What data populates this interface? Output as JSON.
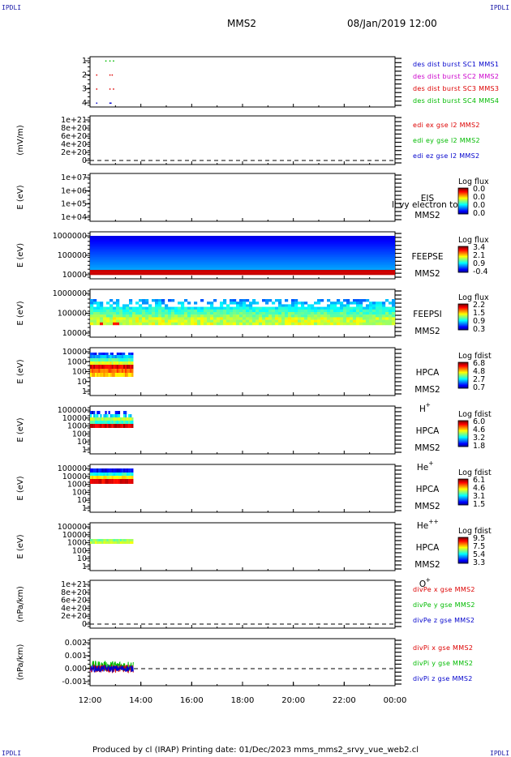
{
  "header": {
    "corner_label": "IPDLI",
    "spacecraft": "MMS2",
    "datetime": "08/Jan/2019 12:00"
  },
  "footer": {
    "text": "Produced by cl (IRAP)   Printing date: 01/Dec/2023   mms_mms2_srvy_vue_web2.cl"
  },
  "colors": {
    "blue": "#0000cc",
    "magenta": "#cc00cc",
    "red": "#dd0000",
    "green": "#00bb00"
  },
  "chart_data": [
    {
      "type": "scatter",
      "ylim": [
        0.5,
        4.5
      ],
      "ticks": [
        "1",
        "2",
        "3",
        "4"
      ],
      "legend": [
        {
          "text": "des dist burst SC1 MMS1",
          "color": "blue"
        },
        {
          "text": "des dist burst SC2 MMS2",
          "color": "magenta"
        },
        {
          "text": "des dist burst SC3 MMS3",
          "color": "red"
        },
        {
          "text": "des dist burst SC4 MMS4",
          "color": "green"
        }
      ]
    },
    {
      "type": "line",
      "ylabel": "(mV/m)",
      "ticks": [
        "1e+21",
        "8e+20",
        "6e+20",
        "4e+20",
        "2e+20",
        "0"
      ],
      "legend": [
        {
          "text": "edi ex gse l2 MMS2",
          "color": "red"
        },
        {
          "text": "edi ey gse l2 MMS2",
          "color": "green"
        },
        {
          "text": "edi ez gse l2 MMS2",
          "color": "blue"
        }
      ]
    },
    {
      "type": "heatmap",
      "ylabel": "E (eV)",
      "ticks": [
        "1e+07",
        "1e+06",
        "1e+05",
        "1e+04"
      ],
      "instrument": [
        "EIS",
        "MMS2"
      ],
      "overlay": "ll vy electron to",
      "cb_title": "Log flux",
      "cb_ticks": [
        "0.0",
        "0.0",
        "0.0",
        "0.0"
      ]
    },
    {
      "type": "heatmap",
      "ylabel": "E (eV)",
      "ticks": [
        "1000000",
        "100000",
        "10000"
      ],
      "instrument": [
        "FEEPSE",
        "MMS2"
      ],
      "cb_title": "Log flux",
      "cb_ticks": [
        "3.4",
        "2.1",
        "0.9",
        "-0.4"
      ]
    },
    {
      "type": "heatmap",
      "ylabel": "E (eV)",
      "ticks": [
        "1000000",
        "100000",
        "10000"
      ],
      "instrument": [
        "FEEPSI",
        "MMS2"
      ],
      "cb_title": "Log flux",
      "cb_ticks": [
        "2.2",
        "1.5",
        "0.9",
        "0.3"
      ]
    },
    {
      "type": "heatmap",
      "ylabel": "E (eV)",
      "ticks": [
        "10000",
        "1000",
        "100",
        "10",
        "1"
      ],
      "instrument": [
        "HPCA",
        "MMS2",
        "H",
        "+"
      ],
      "cb_title": "Log fdist",
      "cb_ticks": [
        "6.8",
        "4.8",
        "2.7",
        "0.7"
      ]
    },
    {
      "type": "heatmap",
      "ylabel": "E (eV)",
      "ticks": [
        "100000",
        "10000",
        "1000",
        "100",
        "10",
        "1"
      ],
      "instrument": [
        "HPCA",
        "MMS2",
        "He",
        "+"
      ],
      "cb_title": "Log fdist",
      "cb_ticks": [
        "6.0",
        "4.6",
        "3.2",
        "1.8"
      ]
    },
    {
      "type": "heatmap",
      "ylabel": "E (eV)",
      "ticks": [
        "100000",
        "10000",
        "1000",
        "100",
        "10",
        "1"
      ],
      "instrument": [
        "HPCA",
        "MMS2",
        "He",
        "++"
      ],
      "cb_title": "Log fdist",
      "cb_ticks": [
        "6.1",
        "4.6",
        "3.1",
        "1.5"
      ]
    },
    {
      "type": "heatmap",
      "ylabel": "E (eV)",
      "ticks": [
        "100000",
        "10000",
        "1000",
        "100",
        "10",
        "1"
      ],
      "instrument": [
        "HPCA",
        "MMS2",
        "O",
        "+"
      ],
      "cb_title": "Log fdist",
      "cb_ticks": [
        "9.5",
        "7.5",
        "5.4",
        "3.3"
      ]
    },
    {
      "type": "line",
      "ylabel": "(nPa/km)",
      "ticks": [
        "1e+21",
        "8e+20",
        "6e+20",
        "4e+20",
        "2e+20",
        "0"
      ],
      "legend": [
        {
          "text": "divPe x gse MMS2",
          "color": "red"
        },
        {
          "text": "divPe y gse MMS2",
          "color": "green"
        },
        {
          "text": "divPe z gse MMS2",
          "color": "blue"
        }
      ]
    },
    {
      "type": "line",
      "ylabel": "(nPa/km)",
      "ylim": [
        -0.0015,
        0.0025
      ],
      "ticks": [
        "0.002",
        "0.001",
        "0.000",
        "-0.001"
      ],
      "legend": [
        {
          "text": "divPi x gse MMS2",
          "color": "red"
        },
        {
          "text": "divPi y gse MMS2",
          "color": "green"
        },
        {
          "text": "divPi z gse MMS2",
          "color": "blue"
        }
      ]
    }
  ],
  "time_axis": {
    "ticks": [
      "12:00",
      "14:00",
      "16:00",
      "18:00",
      "20:00",
      "22:00",
      "00:00"
    ]
  }
}
